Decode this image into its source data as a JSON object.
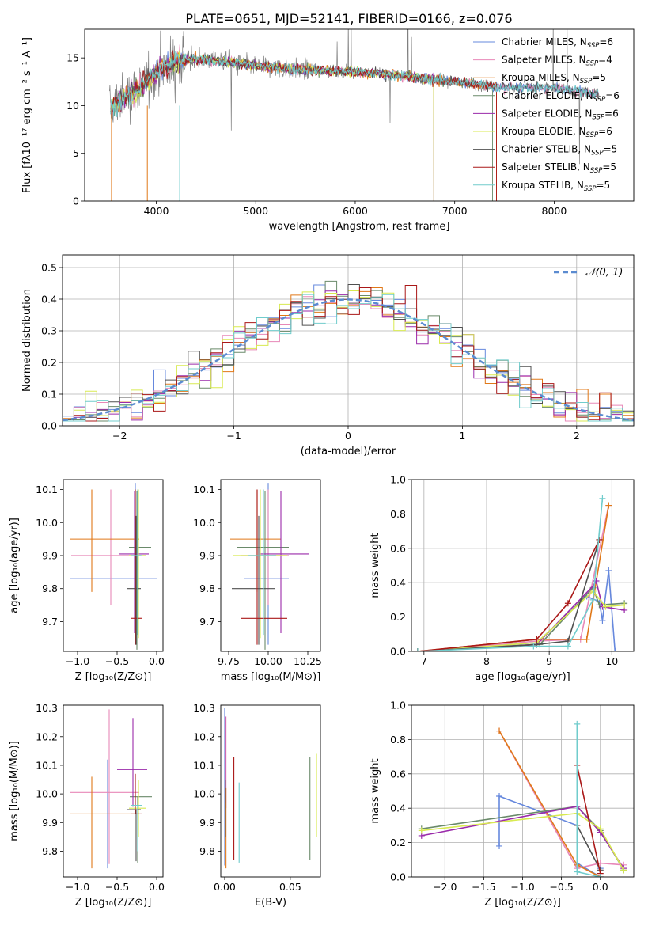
{
  "figure": {
    "title": "PLATE=0651, MJD=52141, FIBERID=0166, z=0.076"
  },
  "colors": {
    "models": [
      "#6688dd",
      "#e888b8",
      "#e07818",
      "#6a8a6a",
      "#9a2aaa",
      "#d8ea50",
      "#505050",
      "#aa1818",
      "#70cccc"
    ],
    "gaussian": "#5b8bd0",
    "data_spectrum": "#808080"
  },
  "chart_data": [
    {
      "id": "spectrum",
      "type": "line",
      "xlabel": "wavelength [Angstrom, rest frame]",
      "ylabel": "Flux [fλ10⁻¹⁷ erg cm⁻² s⁻¹ A⁻¹]",
      "xlim": [
        3280,
        8800
      ],
      "ylim": [
        0,
        18
      ],
      "xticks": [
        4000,
        5000,
        6000,
        7000,
        8000
      ],
      "yticks": [
        0,
        5,
        10,
        15
      ],
      "legend_position": "top-right",
      "legend": [
        {
          "base": "Chabrier MILES, N",
          "sub": "SSP",
          "tail": "=6"
        },
        {
          "base": "Salpeter MILES, N",
          "sub": "SSP",
          "tail": "=4"
        },
        {
          "base": "Kroupa MILES, N",
          "sub": "SSP",
          "tail": "=5"
        },
        {
          "base": "Chabrier ELODIE, N",
          "sub": "SSP",
          "tail": "=6"
        },
        {
          "base": "Salpeter ELODIE, N",
          "sub": "SSP",
          "tail": "=6"
        },
        {
          "base": "Kroupa ELODIE, N",
          "sub": "SSP",
          "tail": "=6"
        },
        {
          "base": "Chabrier STELIB, N",
          "sub": "SSP",
          "tail": "=5"
        },
        {
          "base": "Salpeter STELIB, N",
          "sub": "SSP",
          "tail": "=5"
        },
        {
          "base": "Kroupa STELIB, N",
          "sub": "SSP",
          "tail": "=5"
        }
      ],
      "continuum": {
        "x": [
          3530,
          3700,
          3900,
          4000,
          4200,
          4400,
          4700,
          5000,
          5300,
          5600,
          5900,
          6200,
          6500,
          6800,
          7100,
          7400,
          7700,
          8000,
          8300,
          8450
        ],
        "y": [
          9.8,
          11.0,
          12.5,
          13.6,
          14.6,
          14.9,
          14.6,
          14.2,
          13.9,
          13.7,
          13.6,
          13.4,
          13.1,
          12.7,
          12.4,
          12.0,
          11.9,
          11.8,
          11.5,
          11.2
        ]
      }
    },
    {
      "id": "residuals",
      "type": "histogram",
      "xlabel": "(data-model)/error",
      "ylabel": "Normed distribution",
      "xlim": [
        -2.5,
        2.5
      ],
      "ylim": [
        0,
        0.54
      ],
      "xticks": [
        -2,
        -1,
        0,
        1,
        2
      ],
      "yticks": [
        0.0,
        0.1,
        0.2,
        0.3,
        0.4,
        0.5
      ],
      "grid": true,
      "legend_position": "top-right",
      "gaussian_label": "𝒩(0, 1)",
      "bin_width": 0.1
    },
    {
      "id": "age-vs-Z",
      "type": "errorbar",
      "xlabel": "Z [log₁₀(Z/Z⊙)]",
      "ylabel": "age  [log₁₀(age/yr)]",
      "xlim": [
        -1.18,
        0.08
      ],
      "ylim": [
        9.61,
        10.13
      ],
      "xticks": [
        -1.0,
        -0.5,
        0.0
      ],
      "ytick_values": [
        9.7,
        9.8,
        9.9,
        10.0,
        10.1
      ],
      "points": [
        {
          "x": -0.27,
          "xerr": [
            0.82,
            0.28
          ],
          "y": 9.83,
          "yerr": [
            0.2,
            0.29
          ]
        },
        {
          "x": -0.58,
          "xerr": [
            0.5,
            0.38
          ],
          "y": 9.9,
          "yerr": [
            0.15,
            0.2
          ]
        },
        {
          "x": -0.82,
          "xerr": [
            0.28,
            0.6
          ],
          "y": 9.95,
          "yerr": [
            0.16,
            0.15
          ]
        },
        {
          "x": -0.25,
          "xerr": [
            0.1,
            0.18
          ],
          "y": 9.925,
          "yerr": [
            0.31,
            0.17
          ]
        },
        {
          "x": -0.28,
          "xerr": [
            0.2,
            0.18
          ],
          "y": 9.905,
          "yerr": [
            0.24,
            0.19
          ]
        },
        {
          "x": -0.23,
          "xerr": [
            0.12,
            0.1
          ],
          "y": 9.9,
          "yerr": [
            0.25,
            0.2
          ]
        },
        {
          "x": -0.26,
          "xerr": [
            0.12,
            0.06
          ],
          "y": 9.8,
          "yerr": [
            0.17,
            0.22
          ]
        },
        {
          "x": -0.27,
          "xerr": [
            0.06,
            0.08
          ],
          "y": 9.71,
          "yerr": [
            0.08,
            0.39
          ]
        },
        {
          "x": -0.24,
          "xerr": [
            0.08,
            0.06
          ],
          "y": 9.9,
          "yerr": [
            0.24,
            0.2
          ]
        }
      ]
    },
    {
      "id": "age-vs-mass",
      "type": "errorbar",
      "xlabel": "mass [log₁₀(M/M⊙)]",
      "xlim": [
        9.7,
        10.33
      ],
      "ylim": [
        9.61,
        10.13
      ],
      "xticks": [
        9.75,
        10.0,
        10.25
      ],
      "ytick_values": [
        9.7,
        9.8,
        9.9,
        10.0,
        10.1
      ],
      "points": [
        {
          "x": 10.0,
          "xerr": [
            0.15,
            0.13
          ],
          "y": 9.83,
          "yerr": [
            0.2,
            0.29
          ]
        },
        {
          "x": 10.0,
          "xerr": [
            0.17,
            0.13
          ],
          "y": 9.9,
          "yerr": [
            0.15,
            0.2
          ]
        },
        {
          "x": 9.93,
          "xerr": [
            0.17,
            0.15
          ],
          "y": 9.95,
          "yerr": [
            0.16,
            0.15
          ]
        },
        {
          "x": 9.98,
          "xerr": [
            0.18,
            0.15
          ],
          "y": 9.925,
          "yerr": [
            0.31,
            0.17
          ]
        },
        {
          "x": 10.08,
          "xerr": [
            0.13,
            0.18
          ],
          "y": 9.905,
          "yerr": [
            0.24,
            0.19
          ]
        },
        {
          "x": 9.95,
          "xerr": [
            0.17,
            0.17
          ],
          "y": 9.9,
          "yerr": [
            0.25,
            0.2
          ]
        },
        {
          "x": 9.94,
          "xerr": [
            0.17,
            0.1
          ],
          "y": 9.8,
          "yerr": [
            0.17,
            0.22
          ]
        },
        {
          "x": 9.93,
          "xerr": [
            0.1,
            0.19
          ],
          "y": 9.71,
          "yerr": [
            0.08,
            0.39
          ]
        },
        {
          "x": 9.97,
          "xerr": [
            0.1,
            0.08
          ],
          "y": 9.9,
          "yerr": [
            0.24,
            0.2
          ]
        }
      ]
    },
    {
      "id": "weight-vs-age",
      "type": "line",
      "xlabel": "age  [log₁₀(age/yr)]",
      "ylabel": "mass weight",
      "xlim": [
        6.8,
        10.35
      ],
      "ylim": [
        0,
        1
      ],
      "xticks": [
        7,
        8,
        9,
        10
      ],
      "yticks": [
        0.0,
        0.2,
        0.4,
        0.6,
        0.8,
        1.0
      ],
      "grid": true,
      "series": [
        {
          "x": [
            6.9,
            8.8,
            9.6,
            9.8,
            9.85,
            9.95,
            10.05
          ],
          "y": [
            0.0,
            0.05,
            0.32,
            0.29,
            0.18,
            0.47,
            0.0
          ]
        },
        {
          "x": [
            6.9,
            8.8,
            9.5,
            9.95
          ],
          "y": [
            0.0,
            0.06,
            0.07,
            0.85
          ]
        },
        {
          "x": [
            6.9,
            8.8,
            9.6,
            9.95
          ],
          "y": [
            0.0,
            0.07,
            0.07,
            0.85
          ]
        },
        {
          "x": [
            6.9,
            8.85,
            9.7,
            9.8,
            10.2
          ],
          "y": [
            0.0,
            0.04,
            0.37,
            0.27,
            0.28
          ]
        },
        {
          "x": [
            6.9,
            8.8,
            9.7,
            9.75,
            9.85,
            10.2
          ],
          "y": [
            0.0,
            0.04,
            0.38,
            0.41,
            0.26,
            0.24
          ]
        },
        {
          "x": [
            6.9,
            8.8,
            9.7,
            9.9,
            10.2
          ],
          "y": [
            0.0,
            0.05,
            0.35,
            0.26,
            0.27
          ]
        },
        {
          "x": [
            6.9,
            8.8,
            9.3,
            9.8
          ],
          "y": [
            0.0,
            0.04,
            0.06,
            0.65
          ]
        },
        {
          "x": [
            6.9,
            8.8,
            9.3,
            9.8
          ],
          "y": [
            0.0,
            0.07,
            0.28,
            0.65
          ]
        },
        {
          "x": [
            6.9,
            8.75,
            9.3,
            9.7,
            9.85
          ],
          "y": [
            0.0,
            0.03,
            0.03,
            0.3,
            0.89
          ]
        }
      ]
    },
    {
      "id": "mass-vs-Z",
      "type": "errorbar",
      "xlabel": "Z [log₁₀(Z/Z⊙)]",
      "ylabel": "mass [log₁₀(M/M⊙)]",
      "xlim": [
        -1.18,
        0.08
      ],
      "ylim": [
        9.71,
        10.31
      ],
      "xticks": [
        -1.0,
        -0.5,
        0.0
      ],
      "ytick_values": [
        9.8,
        9.9,
        10.0,
        10.1,
        10.2,
        10.3
      ],
      "points": [
        {
          "x": -0.62,
          "xerr": [
            0.0,
            0.0
          ],
          "y": 9.93,
          "yerr": [
            0.19,
            0.19
          ]
        },
        {
          "x": -0.6,
          "xerr": [
            0.5,
            0.38
          ],
          "y": 10.005,
          "yerr": [
            0.25,
            0.29
          ]
        },
        {
          "x": -0.82,
          "xerr": [
            0.28,
            0.6
          ],
          "y": 9.93,
          "yerr": [
            0.19,
            0.13
          ]
        },
        {
          "x": -0.24,
          "xerr": [
            0.1,
            0.18
          ],
          "y": 9.99,
          "yerr": [
            0.23,
            0.0
          ]
        },
        {
          "x": -0.3,
          "xerr": [
            0.2,
            0.18
          ],
          "y": 10.085,
          "yerr": [
            0.13,
            0.18
          ]
        },
        {
          "x": -0.23,
          "xerr": [
            0.12,
            0.1
          ],
          "y": 9.95,
          "yerr": [
            0.1,
            0.1
          ]
        },
        {
          "x": -0.26,
          "xerr": [
            0.12,
            0.06
          ],
          "y": 9.945,
          "yerr": [
            0.18,
            0.0
          ]
        },
        {
          "x": -0.27,
          "xerr": [
            0.06,
            0.08
          ],
          "y": 9.93,
          "yerr": [
            0.0,
            0.14
          ]
        },
        {
          "x": -0.24,
          "xerr": [
            0.08,
            0.06
          ],
          "y": 9.96,
          "yerr": [
            0.16,
            0.0
          ]
        }
      ]
    },
    {
      "id": "mass-vs-EBV",
      "type": "errorbar",
      "xlabel": "E(B-V)",
      "xlim": [
        -0.003,
        0.073
      ],
      "ylim": [
        9.71,
        10.31
      ],
      "xticks": [
        0.0,
        0.05
      ],
      "ytick_values": [
        9.8,
        9.9,
        10.0,
        10.1,
        10.2,
        10.3
      ],
      "points": [
        {
          "x": 0.0,
          "xerr": [
            0,
            0
          ],
          "y": 10.0,
          "yerr": [
            0.25,
            0.3
          ]
        },
        {
          "x": 0.001,
          "xerr": [
            0,
            0
          ],
          "y": 10.05,
          "yerr": [
            0.1,
            0.22
          ]
        },
        {
          "x": 0.001,
          "xerr": [
            0,
            0
          ],
          "y": 9.9,
          "yerr": [
            0.16,
            0.12
          ]
        },
        {
          "x": 0.065,
          "xerr": [
            0,
            0
          ],
          "y": 9.95,
          "yerr": [
            0.18,
            0.18
          ]
        },
        {
          "x": 0.0005,
          "xerr": [
            0,
            0
          ],
          "y": 10.1,
          "yerr": [
            0.13,
            0.17
          ]
        },
        {
          "x": 0.07,
          "xerr": [
            0,
            0
          ],
          "y": 10.0,
          "yerr": [
            0.15,
            0.14
          ]
        },
        {
          "x": 0.0005,
          "xerr": [
            0,
            0
          ],
          "y": 9.95,
          "yerr": [
            0.1,
            0.1
          ]
        },
        {
          "x": 0.007,
          "xerr": [
            0,
            0
          ],
          "y": 9.95,
          "yerr": [
            0.18,
            0.18
          ]
        },
        {
          "x": 0.011,
          "xerr": [
            0,
            0
          ],
          "y": 9.85,
          "yerr": [
            0.09,
            0.19
          ]
        }
      ]
    },
    {
      "id": "weight-vs-Z",
      "type": "line",
      "xlabel": "Z [log₁₀(Z/Z⊙)]",
      "ylabel": "mass weight",
      "xlim": [
        -2.43,
        0.43
      ],
      "ylim": [
        0,
        1
      ],
      "xticks": [
        -2.0,
        -1.5,
        -1.0,
        -0.5,
        0.0
      ],
      "yticks": [
        0.0,
        0.2,
        0.4,
        0.6,
        0.8,
        1.0
      ],
      "grid": true,
      "series": [
        {
          "x": [
            -1.3,
            -1.3,
            -0.3,
            -0.3,
            0.0,
            0.0
          ],
          "y": [
            0.18,
            0.47,
            0.3,
            0.08,
            0.0,
            0.05
          ]
        },
        {
          "x": [
            -1.3,
            -0.3,
            0.0,
            0.3
          ],
          "y": [
            0.85,
            0.05,
            0.08,
            0.07
          ]
        },
        {
          "x": [
            -1.3,
            -0.3,
            0.0
          ],
          "y": [
            0.85,
            0.07,
            0.0
          ]
        },
        {
          "x": [
            -2.3,
            -0.3,
            0.0,
            0.3
          ],
          "y": [
            0.28,
            0.41,
            0.27,
            0.04
          ]
        },
        {
          "x": [
            -2.3,
            -0.3,
            0.0,
            0.3
          ],
          "y": [
            0.24,
            0.41,
            0.26,
            0.05
          ]
        },
        {
          "x": [
            -2.3,
            -0.3,
            0.0,
            0.3
          ],
          "y": [
            0.27,
            0.37,
            0.28,
            0.04
          ]
        },
        {
          "x": [
            -0.3,
            0.0
          ],
          "y": [
            0.3,
            0.04
          ]
        },
        {
          "x": [
            -0.3,
            0.0
          ],
          "y": [
            0.65,
            0.02
          ]
        },
        {
          "x": [
            -0.3,
            -0.3,
            0.0
          ],
          "y": [
            0.89,
            0.03,
            0.0
          ]
        }
      ]
    }
  ]
}
